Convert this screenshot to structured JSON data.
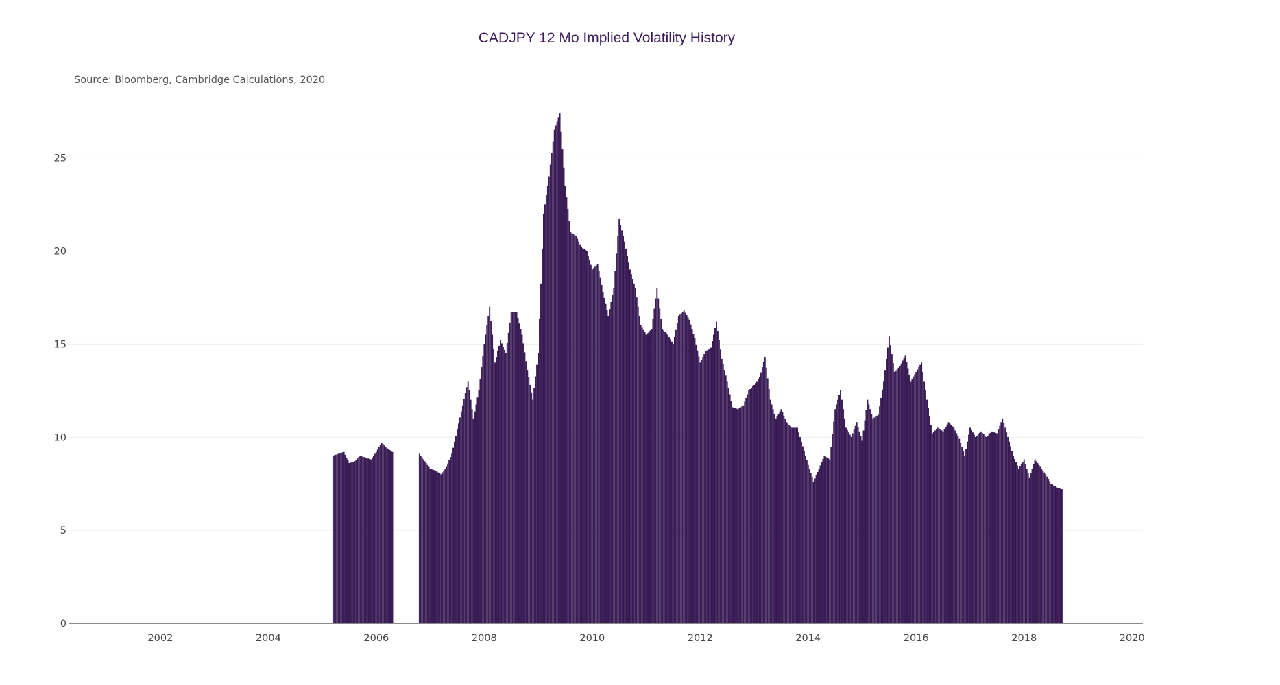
{
  "colors": {
    "bar_fill": "#40205e",
    "bar_stroke": "#2a0e45",
    "grid": "#eeeeee",
    "background": "#ffffff"
  },
  "chart_data": {
    "type": "bar",
    "title": "CADJPY 12 Mo Implied Volatility History",
    "subtitle": "Source: Bloomberg, Cambridge Calculations, 2020",
    "xlabel": "",
    "ylabel": "",
    "xlim": [
      2000.3,
      2020.2
    ],
    "ylim": [
      0,
      27.6
    ],
    "grid": true,
    "legend": "none",
    "x_ticks": [
      2002,
      2004,
      2006,
      2008,
      2010,
      2012,
      2014,
      2016,
      2018,
      2020
    ],
    "x_tick_labels": [
      "2002",
      "2004",
      "2006",
      "2008",
      "2010",
      "2012",
      "2014",
      "2016",
      "2018",
      "2020"
    ],
    "y_ticks": [
      0,
      5,
      10,
      15,
      20,
      25
    ],
    "y_tick_labels": [
      "0",
      "5",
      "10",
      "15",
      "20",
      "25"
    ],
    "series": [
      {
        "values_by_year": [
          [
            2005.2,
            9.0
          ],
          [
            2005.3,
            9.1
          ],
          [
            2005.4,
            9.2
          ],
          [
            2005.5,
            8.6
          ],
          [
            2005.6,
            8.7
          ],
          [
            2005.7,
            9.0
          ],
          [
            2005.8,
            8.9
          ],
          [
            2005.9,
            8.8
          ],
          [
            2006.0,
            9.2
          ],
          [
            2006.1,
            9.7
          ],
          [
            2006.2,
            9.4
          ],
          [
            2006.3,
            9.2
          ],
          [
            2006.8,
            9.1
          ],
          [
            2006.9,
            8.7
          ],
          [
            2007.0,
            8.3
          ],
          [
            2007.1,
            8.2
          ],
          [
            2007.2,
            8.0
          ],
          [
            2007.3,
            8.4
          ],
          [
            2007.4,
            9.1
          ],
          [
            2007.7,
            13.0
          ],
          [
            2007.8,
            11.0
          ],
          [
            2007.9,
            12.5
          ],
          [
            2008.0,
            15.0
          ],
          [
            2008.1,
            17.0
          ],
          [
            2008.2,
            14.0
          ],
          [
            2008.3,
            15.2
          ],
          [
            2008.4,
            14.5
          ],
          [
            2008.5,
            16.7
          ],
          [
            2008.6,
            16.7
          ],
          [
            2008.7,
            15.5
          ],
          [
            2008.8,
            13.6
          ],
          [
            2008.9,
            12.0
          ],
          [
            2009.0,
            14.5
          ],
          [
            2009.1,
            22.0
          ],
          [
            2009.2,
            24.0
          ],
          [
            2009.3,
            26.5
          ],
          [
            2009.4,
            27.4
          ],
          [
            2009.5,
            23.5
          ],
          [
            2009.6,
            21.0
          ],
          [
            2009.7,
            20.8
          ],
          [
            2009.8,
            20.2
          ],
          [
            2009.9,
            20.0
          ],
          [
            2010.0,
            19.0
          ],
          [
            2010.1,
            19.3
          ],
          [
            2010.2,
            17.8
          ],
          [
            2010.3,
            16.5
          ],
          [
            2010.4,
            18.0
          ],
          [
            2010.5,
            21.7
          ],
          [
            2010.6,
            20.5
          ],
          [
            2010.7,
            19.0
          ],
          [
            2010.8,
            18.0
          ],
          [
            2010.9,
            16.0
          ],
          [
            2011.0,
            15.5
          ],
          [
            2011.1,
            15.8
          ],
          [
            2011.2,
            18.0
          ],
          [
            2011.3,
            15.8
          ],
          [
            2011.4,
            15.5
          ],
          [
            2011.5,
            15.0
          ],
          [
            2011.6,
            16.5
          ],
          [
            2011.7,
            16.8
          ],
          [
            2011.8,
            16.3
          ],
          [
            2011.9,
            15.3
          ],
          [
            2012.0,
            14.0
          ],
          [
            2012.1,
            14.6
          ],
          [
            2012.2,
            14.8
          ],
          [
            2012.3,
            16.2
          ],
          [
            2012.4,
            14.2
          ],
          [
            2012.5,
            13.0
          ],
          [
            2012.6,
            11.6
          ],
          [
            2012.7,
            11.5
          ],
          [
            2012.8,
            11.7
          ],
          [
            2012.9,
            12.5
          ],
          [
            2013.0,
            12.8
          ],
          [
            2013.1,
            13.2
          ],
          [
            2013.2,
            14.3
          ],
          [
            2013.3,
            12.0
          ],
          [
            2013.4,
            11.0
          ],
          [
            2013.5,
            11.5
          ],
          [
            2013.6,
            10.8
          ],
          [
            2013.7,
            10.5
          ],
          [
            2013.8,
            10.5
          ],
          [
            2013.9,
            9.5
          ],
          [
            2014.0,
            8.5
          ],
          [
            2014.1,
            7.6
          ],
          [
            2014.2,
            8.3
          ],
          [
            2014.3,
            9.0
          ],
          [
            2014.4,
            8.8
          ],
          [
            2014.5,
            11.5
          ],
          [
            2014.6,
            12.5
          ],
          [
            2014.7,
            10.5
          ],
          [
            2014.8,
            10.0
          ],
          [
            2014.9,
            10.8
          ],
          [
            2015.0,
            9.8
          ],
          [
            2015.1,
            12.0
          ],
          [
            2015.2,
            11.0
          ],
          [
            2015.3,
            11.2
          ],
          [
            2015.4,
            13.0
          ],
          [
            2015.5,
            15.4
          ],
          [
            2015.6,
            13.5
          ],
          [
            2015.7,
            13.8
          ],
          [
            2015.8,
            14.4
          ],
          [
            2015.9,
            13.0
          ],
          [
            2016.0,
            13.5
          ],
          [
            2016.1,
            14.0
          ],
          [
            2016.2,
            12.0
          ],
          [
            2016.3,
            10.2
          ],
          [
            2016.4,
            10.5
          ],
          [
            2016.5,
            10.3
          ],
          [
            2016.6,
            10.8
          ],
          [
            2016.7,
            10.5
          ],
          [
            2016.8,
            9.9
          ],
          [
            2016.9,
            9.0
          ],
          [
            2017.0,
            10.5
          ],
          [
            2017.1,
            10.0
          ],
          [
            2017.2,
            10.3
          ],
          [
            2017.3,
            10.0
          ],
          [
            2017.4,
            10.3
          ],
          [
            2017.5,
            10.2
          ],
          [
            2017.6,
            11.0
          ],
          [
            2017.7,
            10.0
          ],
          [
            2017.8,
            9.0
          ],
          [
            2017.9,
            8.3
          ],
          [
            2018.0,
            8.8
          ],
          [
            2018.1,
            7.8
          ],
          [
            2018.2,
            8.8
          ],
          [
            2018.3,
            8.4
          ],
          [
            2018.4,
            8.0
          ],
          [
            2018.5,
            7.5
          ],
          [
            2018.6,
            7.3
          ],
          [
            2018.7,
            7.2
          ]
        ]
      }
    ]
  }
}
